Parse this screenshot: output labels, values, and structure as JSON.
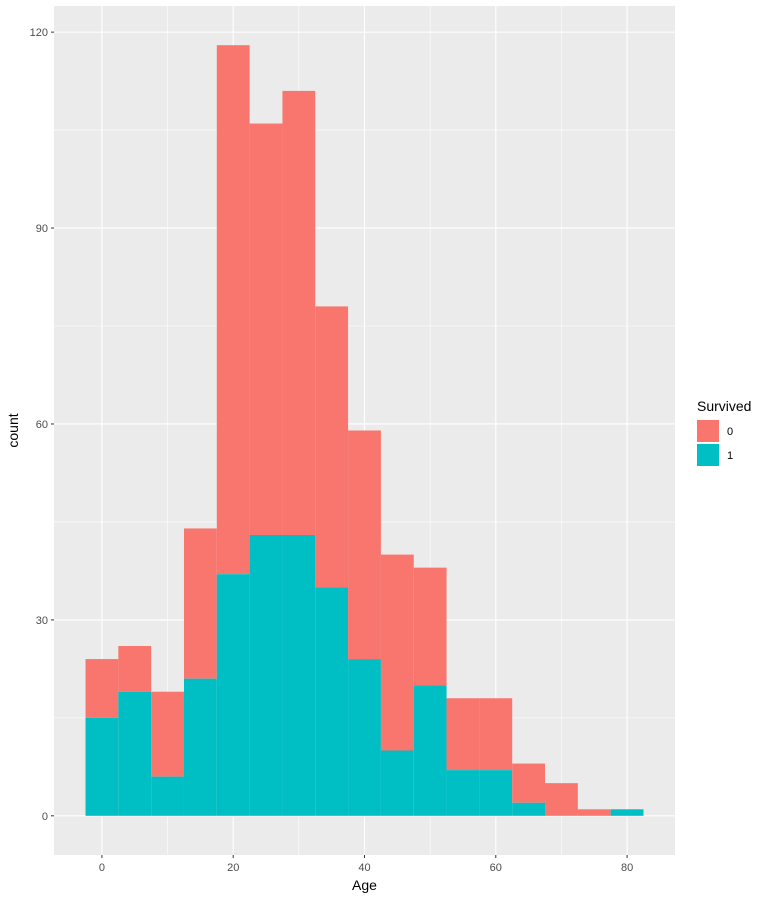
{
  "chart_data": {
    "type": "bar",
    "subtype": "stacked-histogram",
    "xlabel": "Age",
    "ylabel": "count",
    "xlim": [
      -7.3,
      87.3
    ],
    "ylim": [
      -6,
      124
    ],
    "x_ticks": [
      0,
      20,
      40,
      60,
      80
    ],
    "x_tick_labels": [
      "0",
      "20",
      "40",
      "60",
      "80"
    ],
    "y_ticks": [
      0,
      30,
      60,
      90,
      120
    ],
    "y_tick_labels": [
      "0",
      "30",
      "60",
      "90",
      "120"
    ],
    "grid": true,
    "legend": {
      "title": "Survived",
      "position": "right"
    },
    "bins": [
      {
        "x0": -2.5,
        "x1": 2.5
      },
      {
        "x0": 2.5,
        "x1": 7.5
      },
      {
        "x0": 7.5,
        "x1": 12.5
      },
      {
        "x0": 12.5,
        "x1": 17.5
      },
      {
        "x0": 17.5,
        "x1": 22.5
      },
      {
        "x0": 22.5,
        "x1": 27.5
      },
      {
        "x0": 27.5,
        "x1": 32.5
      },
      {
        "x0": 32.5,
        "x1": 37.5
      },
      {
        "x0": 37.5,
        "x1": 42.5
      },
      {
        "x0": 42.5,
        "x1": 47.5
      },
      {
        "x0": 47.5,
        "x1": 52.5
      },
      {
        "x0": 52.5,
        "x1": 57.5
      },
      {
        "x0": 57.5,
        "x1": 62.5
      },
      {
        "x0": 62.5,
        "x1": 67.5
      },
      {
        "x0": 67.5,
        "x1": 72.5
      },
      {
        "x0": 72.5,
        "x1": 77.5
      },
      {
        "x0": 77.5,
        "x1": 82.5
      }
    ],
    "series": [
      {
        "name": "0",
        "color": "#F8766D",
        "values": [
          9,
          7,
          13,
          23,
          81,
          63,
          68,
          43,
          35,
          30,
          18,
          11,
          11,
          6,
          5,
          1,
          0
        ]
      },
      {
        "name": "1",
        "color": "#00BFC4",
        "values": [
          15,
          19,
          6,
          21,
          37,
          43,
          43,
          35,
          24,
          10,
          20,
          7,
          7,
          2,
          0,
          0,
          1
        ]
      }
    ]
  }
}
